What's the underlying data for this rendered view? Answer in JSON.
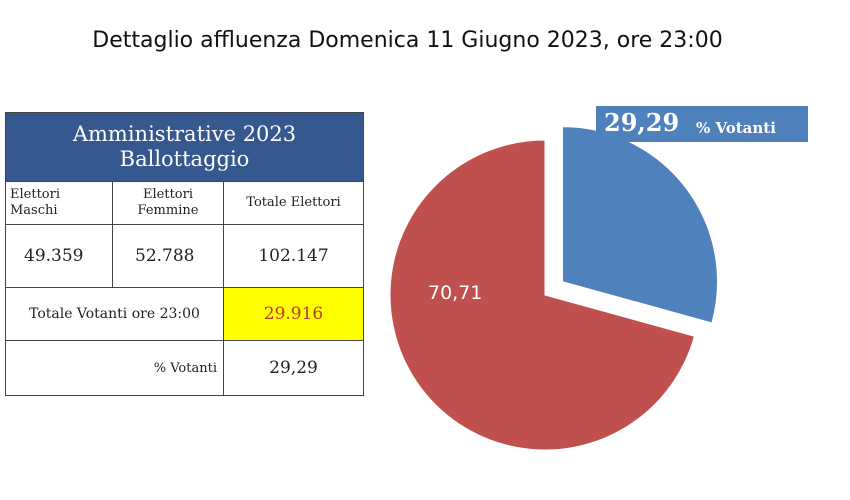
{
  "title": "Dettaglio affluenza Domenica 11 Giugno 2023, ore 23:00",
  "table": {
    "header_line1": "Amministrative 2023",
    "header_line2": "Ballottaggio",
    "col_male_line1": "Elettori",
    "col_male_line2": "Maschi",
    "col_female_line1": "Elettori",
    "col_female_line2": "Femmine",
    "col_total": "Totale Elettori",
    "male_voters": "49.359",
    "female_voters": "52.788",
    "total_voters": "102.147",
    "turnout_label": "Totale Votanti ore 23:00",
    "turnout_value": "29.916",
    "percent_label": "% Votanti",
    "percent_value": "29,29"
  },
  "chart_data": {
    "type": "pie",
    "slices": [
      {
        "label": "29,29",
        "value": 29.29,
        "color": "#4f81bd",
        "exploded": true
      },
      {
        "label": "70,71",
        "value": 70.71,
        "color": "#c0504d",
        "exploded": false
      }
    ],
    "callout_value": "29,29",
    "callout_suffix": "% Votanti",
    "slice_label_other": "70,71"
  }
}
